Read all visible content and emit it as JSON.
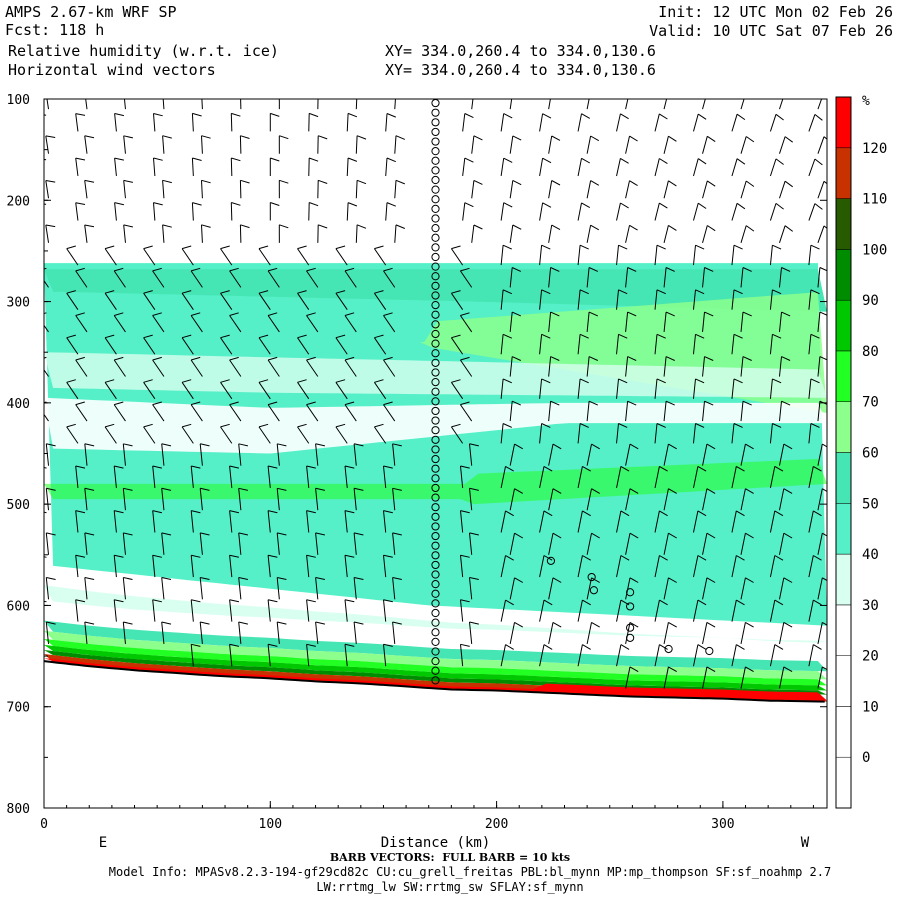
{
  "header": {
    "model": "AMPS 2.67-km WRF SP",
    "fcst": "Fcst: 118 h",
    "field1": "Relative humidity (w.r.t. ice)",
    "field2": "Horizontal wind vectors",
    "init": "Init: 12 UTC Mon 02 Feb 26",
    "valid": "Valid: 10 UTC Sat 07 Feb 26",
    "xy1": "XY= 334.0,260.4 to 334.0,130.6",
    "xy2": "XY= 334.0,260.4 to 334.0,130.6"
  },
  "footer": {
    "barb": "BARB VECTORS:  FULL BARB = 10 kts",
    "info1": "Model Info: MPASv8.2.3-194-gf29cd82c CU:cu_grell_freitas PBL:bl_mynn MP:mp_thompson SF:sf_noahmp 2.7",
    "info2": "LW:rrtmg_lw SW:rrtmg_sw SFLAY:sf_mynn"
  },
  "chart_data": {
    "type": "heatmap",
    "xlabel": "Distance (km)",
    "ylabel": "",
    "x_ticks": [
      0,
      100,
      200,
      300
    ],
    "y_ticks": [
      100,
      200,
      300,
      400,
      500,
      600,
      700,
      800
    ],
    "xlim": [
      0,
      346
    ],
    "ylim": [
      800,
      100
    ],
    "direction_labels": {
      "left": "E",
      "right": "W"
    },
    "colorbar": {
      "unit": "%",
      "levels": [
        0,
        10,
        20,
        30,
        40,
        50,
        60,
        70,
        80,
        90,
        100,
        110,
        120
      ],
      "colors": [
        "#ffffff",
        "#ffffff",
        "#ffffff",
        "#ffffff",
        "#d8fff0",
        "#55f0c8",
        "#46e6b4",
        "#8cff8c",
        "#22ff22",
        "#00c800",
        "#008c00",
        "#285a00",
        "#c83200",
        "#ff0000"
      ]
    },
    "terrain_surface_hPa": [
      [
        0,
        655
      ],
      [
        20,
        660
      ],
      [
        40,
        664
      ],
      [
        60,
        667
      ],
      [
        80,
        670
      ],
      [
        100,
        672
      ],
      [
        120,
        675
      ],
      [
        140,
        677
      ],
      [
        160,
        680
      ],
      [
        180,
        683
      ],
      [
        200,
        684
      ],
      [
        220,
        686
      ],
      [
        240,
        688
      ],
      [
        260,
        690
      ],
      [
        280,
        691
      ],
      [
        300,
        692
      ],
      [
        320,
        694
      ],
      [
        346,
        695
      ]
    ],
    "calm_column_km": 173
  }
}
